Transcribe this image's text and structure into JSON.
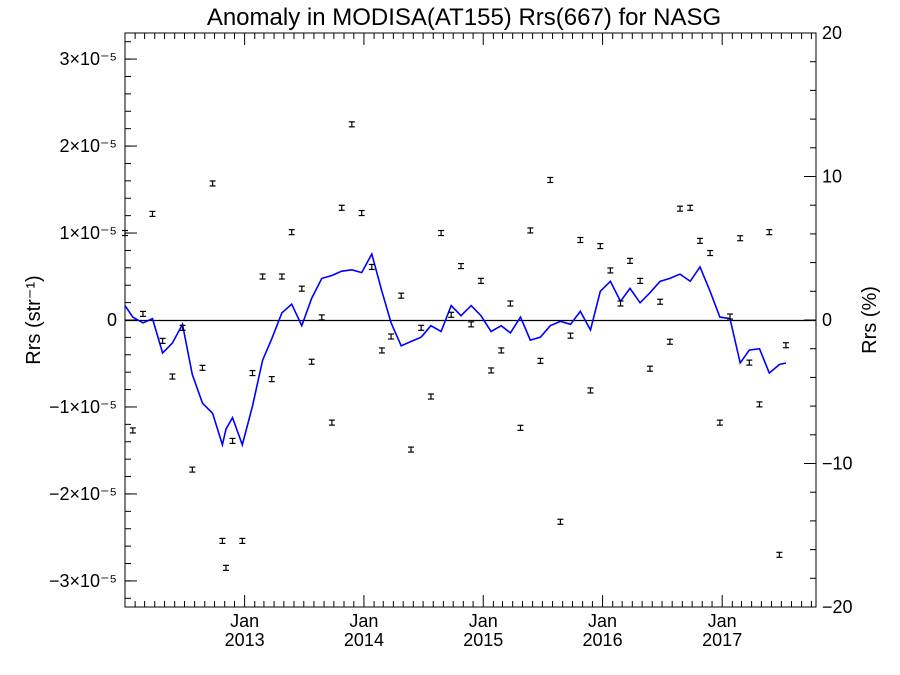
{
  "chart_data": {
    "type": "scatter",
    "title": "Anomaly in MODISA(AT155) Rrs(667) for NASG",
    "ylabel_left": "Rrs (str⁻¹)",
    "ylabel_right": "Rrs (%)",
    "xlim": [
      "2012-01-01",
      "2017-10-15"
    ],
    "ylim_left": [
      -3.3e-05,
      3.3e-05
    ],
    "ylim_right": [
      -20,
      20
    ],
    "left_ticks": [
      {
        "value": 3e-05,
        "label": "3×10⁻⁵"
      },
      {
        "value": 2e-05,
        "label": "2×10⁻⁵"
      },
      {
        "value": 1e-05,
        "label": "1×10⁻⁵"
      },
      {
        "value": 0,
        "label": "0"
      },
      {
        "value": -1e-05,
        "label": "−1×10⁻⁵"
      },
      {
        "value": -2e-05,
        "label": "−2×10⁻⁵"
      },
      {
        "value": -3e-05,
        "label": "−3×10⁻⁵"
      }
    ],
    "right_ticks": [
      {
        "value": 20,
        "label": "20"
      },
      {
        "value": 10,
        "label": "10"
      },
      {
        "value": 0,
        "label": "0"
      },
      {
        "value": -10,
        "label": "−10"
      },
      {
        "value": -20,
        "label": "−20"
      }
    ],
    "x_ticks": [
      {
        "date": "2013-01-01",
        "line1": "Jan",
        "line2": "2013"
      },
      {
        "date": "2014-01-01",
        "line1": "Jan",
        "line2": "2014"
      },
      {
        "date": "2015-01-01",
        "line1": "Jan",
        "line2": "2015"
      },
      {
        "date": "2016-01-01",
        "line1": "Jan",
        "line2": "2016"
      },
      {
        "date": "2017-01-01",
        "line1": "Jan",
        "line2": "2017"
      }
    ],
    "zero_line": true,
    "colors": {
      "points": "#000000",
      "line": "#0000ff",
      "axes": "#000000"
    },
    "series": [
      {
        "axis": "left",
        "style": "points-with-errorbars",
        "points": [
          {
            "x": "2012-01-01",
            "y": 1e-05
          },
          {
            "x": "2012-01-25",
            "y": -1.27e-05
          },
          {
            "x": "2012-02-25",
            "y": 7e-07
          },
          {
            "x": "2012-03-25",
            "y": 1.22e-05
          },
          {
            "x": "2012-04-25",
            "y": -2.4e-06
          },
          {
            "x": "2012-05-25",
            "y": -6.5e-06
          },
          {
            "x": "2012-06-25",
            "y": -9e-07
          },
          {
            "x": "2012-07-25",
            "y": -1.72e-05
          },
          {
            "x": "2012-08-25",
            "y": -5.5e-06
          },
          {
            "x": "2012-09-25",
            "y": 1.57e-05
          },
          {
            "x": "2012-10-25",
            "y": -2.54e-05
          },
          {
            "x": "2012-11-05",
            "y": -2.85e-05
          },
          {
            "x": "2012-11-25",
            "y": -1.39e-05
          },
          {
            "x": "2012-12-25",
            "y": -2.54e-05
          },
          {
            "x": "2013-01-25",
            "y": -6.1e-06
          },
          {
            "x": "2013-02-25",
            "y": 5e-06
          },
          {
            "x": "2013-03-25",
            "y": -6.8e-06
          },
          {
            "x": "2013-04-25",
            "y": 5e-06
          },
          {
            "x": "2013-05-25",
            "y": 1.01e-05
          },
          {
            "x": "2013-06-25",
            "y": 3.6e-06
          },
          {
            "x": "2013-07-25",
            "y": -4.8e-06
          },
          {
            "x": "2013-08-25",
            "y": 3e-07
          },
          {
            "x": "2013-09-25",
            "y": -1.18e-05
          },
          {
            "x": "2013-10-25",
            "y": 1.29e-05
          },
          {
            "x": "2013-11-25",
            "y": 2.25e-05
          },
          {
            "x": "2013-12-25",
            "y": 1.23e-05
          },
          {
            "x": "2014-01-25",
            "y": 6.1e-06
          },
          {
            "x": "2014-02-25",
            "y": -3.5e-06
          },
          {
            "x": "2014-03-25",
            "y": -1.9e-06
          },
          {
            "x": "2014-04-25",
            "y": 2.8e-06
          },
          {
            "x": "2014-05-25",
            "y": -1.49e-05
          },
          {
            "x": "2014-06-25",
            "y": -9e-07
          },
          {
            "x": "2014-07-25",
            "y": -8.8e-06
          },
          {
            "x": "2014-08-25",
            "y": 1e-05
          },
          {
            "x": "2014-09-25",
            "y": 6e-07
          },
          {
            "x": "2014-10-25",
            "y": 6.2e-06
          },
          {
            "x": "2014-11-25",
            "y": -5e-07
          },
          {
            "x": "2014-12-25",
            "y": 4.5e-06
          },
          {
            "x": "2015-01-25",
            "y": -5.8e-06
          },
          {
            "x": "2015-02-25",
            "y": -3.5e-06
          },
          {
            "x": "2015-03-25",
            "y": 1.9e-06
          },
          {
            "x": "2015-04-25",
            "y": -1.24e-05
          },
          {
            "x": "2015-05-25",
            "y": 1.03e-05
          },
          {
            "x": "2015-06-25",
            "y": -4.7e-06
          },
          {
            "x": "2015-07-25",
            "y": 1.61e-05
          },
          {
            "x": "2015-08-25",
            "y": -2.32e-05
          },
          {
            "x": "2015-09-25",
            "y": -1.8e-06
          },
          {
            "x": "2015-10-25",
            "y": 9.2e-06
          },
          {
            "x": "2015-11-25",
            "y": -8.1e-06
          },
          {
            "x": "2015-12-25",
            "y": 8.5e-06
          },
          {
            "x": "2016-01-25",
            "y": 5.7e-06
          },
          {
            "x": "2016-02-25",
            "y": 1.9e-06
          },
          {
            "x": "2016-03-25",
            "y": 6.8e-06
          },
          {
            "x": "2016-04-25",
            "y": 4.5e-06
          },
          {
            "x": "2016-05-25",
            "y": -5.6e-06
          },
          {
            "x": "2016-06-25",
            "y": 2.1e-06
          },
          {
            "x": "2016-07-25",
            "y": -2.5e-06
          },
          {
            "x": "2016-08-25",
            "y": 1.28e-05
          },
          {
            "x": "2016-09-25",
            "y": 1.29e-05
          },
          {
            "x": "2016-10-25",
            "y": 9.1e-06
          },
          {
            "x": "2016-11-25",
            "y": 7.7e-06
          },
          {
            "x": "2016-12-25",
            "y": -1.18e-05
          },
          {
            "x": "2017-01-25",
            "y": 4e-07
          },
          {
            "x": "2017-02-25",
            "y": 9.4e-06
          },
          {
            "x": "2017-03-25",
            "y": -4.9e-06
          },
          {
            "x": "2017-04-25",
            "y": -9.7e-06
          },
          {
            "x": "2017-05-25",
            "y": 1.01e-05
          },
          {
            "x": "2017-06-25",
            "y": -2.7e-05
          },
          {
            "x": "2017-07-15",
            "y": -2.9e-06
          }
        ]
      },
      {
        "axis": "right",
        "style": "line",
        "points": [
          {
            "x": "2012-01-01",
            "y": 1.0
          },
          {
            "x": "2012-01-25",
            "y": 0.2
          },
          {
            "x": "2012-02-25",
            "y": -0.2
          },
          {
            "x": "2012-03-25",
            "y": 0.1
          },
          {
            "x": "2012-04-25",
            "y": -2.3
          },
          {
            "x": "2012-05-25",
            "y": -1.6
          },
          {
            "x": "2012-06-25",
            "y": -0.3
          },
          {
            "x": "2012-07-25",
            "y": -3.8
          },
          {
            "x": "2012-08-25",
            "y": -5.8
          },
          {
            "x": "2012-09-25",
            "y": -6.5
          },
          {
            "x": "2012-10-25",
            "y": -8.7
          },
          {
            "x": "2012-11-05",
            "y": -7.6
          },
          {
            "x": "2012-11-25",
            "y": -6.8
          },
          {
            "x": "2012-12-25",
            "y": -8.7
          },
          {
            "x": "2013-01-25",
            "y": -6.0
          },
          {
            "x": "2013-02-25",
            "y": -2.8
          },
          {
            "x": "2013-03-25",
            "y": -1.3
          },
          {
            "x": "2013-04-25",
            "y": 0.5
          },
          {
            "x": "2013-05-25",
            "y": 1.1
          },
          {
            "x": "2013-06-25",
            "y": -0.4
          },
          {
            "x": "2013-07-25",
            "y": 1.5
          },
          {
            "x": "2013-08-25",
            "y": 2.9
          },
          {
            "x": "2013-09-25",
            "y": 3.1
          },
          {
            "x": "2013-10-25",
            "y": 3.4
          },
          {
            "x": "2013-11-25",
            "y": 3.5
          },
          {
            "x": "2013-12-25",
            "y": 3.3
          },
          {
            "x": "2014-01-25",
            "y": 4.6
          },
          {
            "x": "2014-02-25",
            "y": 2.0
          },
          {
            "x": "2014-03-25",
            "y": -0.2
          },
          {
            "x": "2014-04-25",
            "y": -1.8
          },
          {
            "x": "2014-05-25",
            "y": -1.5
          },
          {
            "x": "2014-06-25",
            "y": -1.2
          },
          {
            "x": "2014-07-25",
            "y": -0.4
          },
          {
            "x": "2014-08-25",
            "y": -0.8
          },
          {
            "x": "2014-09-25",
            "y": 1.0
          },
          {
            "x": "2014-10-25",
            "y": 0.3
          },
          {
            "x": "2014-11-25",
            "y": 1.0
          },
          {
            "x": "2014-12-25",
            "y": 0.3
          },
          {
            "x": "2015-01-25",
            "y": -0.8
          },
          {
            "x": "2015-02-25",
            "y": -0.4
          },
          {
            "x": "2015-03-25",
            "y": -0.9
          },
          {
            "x": "2015-04-25",
            "y": 0.2
          },
          {
            "x": "2015-05-25",
            "y": -1.4
          },
          {
            "x": "2015-06-25",
            "y": -1.2
          },
          {
            "x": "2015-07-25",
            "y": -0.4
          },
          {
            "x": "2015-08-25",
            "y": -0.1
          },
          {
            "x": "2015-09-25",
            "y": -0.3
          },
          {
            "x": "2015-10-25",
            "y": 0.6
          },
          {
            "x": "2015-11-25",
            "y": -0.7
          },
          {
            "x": "2015-12-25",
            "y": 2.0
          },
          {
            "x": "2016-01-25",
            "y": 2.7
          },
          {
            "x": "2016-02-25",
            "y": 1.3
          },
          {
            "x": "2016-03-25",
            "y": 2.2
          },
          {
            "x": "2016-04-25",
            "y": 1.2
          },
          {
            "x": "2016-05-25",
            "y": 1.9
          },
          {
            "x": "2016-06-25",
            "y": 2.7
          },
          {
            "x": "2016-07-25",
            "y": 2.9
          },
          {
            "x": "2016-08-25",
            "y": 3.2
          },
          {
            "x": "2016-09-25",
            "y": 2.7
          },
          {
            "x": "2016-10-25",
            "y": 3.7
          },
          {
            "x": "2016-11-25",
            "y": 2.0
          },
          {
            "x": "2016-12-25",
            "y": 0.2
          },
          {
            "x": "2017-01-25",
            "y": 0.1
          },
          {
            "x": "2017-02-25",
            "y": -3.0
          },
          {
            "x": "2017-03-25",
            "y": -2.1
          },
          {
            "x": "2017-04-25",
            "y": -2.0
          },
          {
            "x": "2017-05-25",
            "y": -3.7
          },
          {
            "x": "2017-06-25",
            "y": -3.1
          },
          {
            "x": "2017-07-15",
            "y": -3.0
          }
        ]
      }
    ]
  }
}
